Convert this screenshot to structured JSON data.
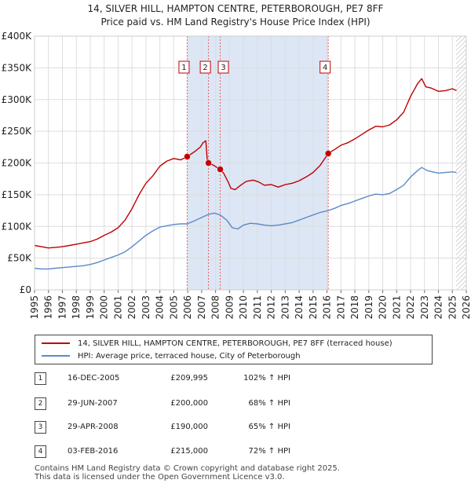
{
  "title_line1": "14, SILVER HILL, HAMPTON CENTRE, PETERBOROUGH, PE7 8FF",
  "title_line2": "Price paid vs. HM Land Registry's House Price Index (HPI)",
  "colors": {
    "property": "#c00000",
    "hpi": "#5b8ac6",
    "shade": "#dde6f5",
    "marker_line": "#e06666",
    "hatch": "#999999"
  },
  "chart_data": {
    "type": "line",
    "title": "Price paid vs. HM Land Registry's House Price Index (HPI)",
    "xlabel": "",
    "ylabel": "",
    "xlim": [
      1995,
      2026
    ],
    "ylim": [
      0,
      400000
    ],
    "y_ticks": [
      {
        "value": 0,
        "label": "£0"
      },
      {
        "value": 50000,
        "label": "£50K"
      },
      {
        "value": 100000,
        "label": "£100K"
      },
      {
        "value": 150000,
        "label": "£150K"
      },
      {
        "value": 200000,
        "label": "£200K"
      },
      {
        "value": 250000,
        "label": "£250K"
      },
      {
        "value": 300000,
        "label": "£300K"
      },
      {
        "value": 350000,
        "label": "£350K"
      },
      {
        "value": 400000,
        "label": "£400K"
      }
    ],
    "x_ticks": [
      "1995",
      "1996",
      "1997",
      "1998",
      "1999",
      "2000",
      "2001",
      "2002",
      "2003",
      "2004",
      "2005",
      "2006",
      "2007",
      "2008",
      "2009",
      "2010",
      "2011",
      "2012",
      "2013",
      "2014",
      "2015",
      "2016",
      "2017",
      "2018",
      "2019",
      "2020",
      "2021",
      "2022",
      "2023",
      "2024",
      "2025",
      "2026"
    ],
    "shaded_range": [
      2005.96,
      2016.09
    ],
    "hatched_from": 2025.25,
    "series": [
      {
        "name": "14, SILVER HILL, HAMPTON CENTRE, PETERBOROUGH, PE7 8FF (terraced house)",
        "color": "#c00000",
        "points": [
          [
            1995,
            70000
          ],
          [
            1995.5,
            68000
          ],
          [
            1996,
            66000
          ],
          [
            1996.5,
            67000
          ],
          [
            1997,
            68000
          ],
          [
            1997.5,
            70000
          ],
          [
            1998,
            72000
          ],
          [
            1998.5,
            74000
          ],
          [
            1999,
            76000
          ],
          [
            1999.5,
            80000
          ],
          [
            2000,
            86000
          ],
          [
            2000.5,
            91000
          ],
          [
            2001,
            98000
          ],
          [
            2001.5,
            110000
          ],
          [
            2002,
            128000
          ],
          [
            2002.5,
            150000
          ],
          [
            2003,
            168000
          ],
          [
            2003.5,
            180000
          ],
          [
            2004,
            195000
          ],
          [
            2004.5,
            203000
          ],
          [
            2005,
            207000
          ],
          [
            2005.5,
            205000
          ],
          [
            2005.96,
            209995
          ],
          [
            2006.5,
            218000
          ],
          [
            2006.9,
            225000
          ],
          [
            2007.1,
            232000
          ],
          [
            2007.3,
            235000
          ],
          [
            2007.4,
            205000
          ],
          [
            2007.49,
            200000
          ],
          [
            2007.8,
            197000
          ],
          [
            2008.1,
            193000
          ],
          [
            2008.33,
            190000
          ],
          [
            2008.6,
            183000
          ],
          [
            2008.9,
            170000
          ],
          [
            2009.1,
            160000
          ],
          [
            2009.4,
            158000
          ],
          [
            2009.8,
            165000
          ],
          [
            2010.2,
            171000
          ],
          [
            2010.7,
            173000
          ],
          [
            2011.1,
            170000
          ],
          [
            2011.5,
            165000
          ],
          [
            2012,
            166000
          ],
          [
            2012.5,
            162000
          ],
          [
            2013,
            166000
          ],
          [
            2013.5,
            168000
          ],
          [
            2014,
            172000
          ],
          [
            2014.5,
            178000
          ],
          [
            2015,
            185000
          ],
          [
            2015.5,
            196000
          ],
          [
            2016.09,
            215000
          ],
          [
            2016.6,
            222000
          ],
          [
            2017,
            228000
          ],
          [
            2017.5,
            232000
          ],
          [
            2018,
            238000
          ],
          [
            2018.5,
            245000
          ],
          [
            2019,
            252000
          ],
          [
            2019.5,
            258000
          ],
          [
            2020,
            257000
          ],
          [
            2020.5,
            260000
          ],
          [
            2021,
            268000
          ],
          [
            2021.5,
            280000
          ],
          [
            2022,
            305000
          ],
          [
            2022.5,
            325000
          ],
          [
            2022.8,
            333000
          ],
          [
            2023.1,
            320000
          ],
          [
            2023.5,
            318000
          ],
          [
            2024,
            313000
          ],
          [
            2024.5,
            314000
          ],
          [
            2025,
            317000
          ],
          [
            2025.3,
            314000
          ]
        ]
      },
      {
        "name": "HPI: Average price, terraced house, City of Peterborough",
        "color": "#5b8ac6",
        "points": [
          [
            1995,
            34000
          ],
          [
            1995.5,
            33000
          ],
          [
            1996,
            33000
          ],
          [
            1996.5,
            34000
          ],
          [
            1997,
            35000
          ],
          [
            1997.5,
            36000
          ],
          [
            1998,
            37000
          ],
          [
            1998.5,
            38000
          ],
          [
            1999,
            40000
          ],
          [
            1999.5,
            43000
          ],
          [
            2000,
            47000
          ],
          [
            2000.5,
            51000
          ],
          [
            2001,
            55000
          ],
          [
            2001.5,
            60000
          ],
          [
            2002,
            68000
          ],
          [
            2002.5,
            77000
          ],
          [
            2003,
            86000
          ],
          [
            2003.5,
            93000
          ],
          [
            2004,
            99000
          ],
          [
            2004.5,
            101000
          ],
          [
            2005,
            103000
          ],
          [
            2005.5,
            104000
          ],
          [
            2005.96,
            104000
          ],
          [
            2006.5,
            109000
          ],
          [
            2007,
            114000
          ],
          [
            2007.49,
            119000
          ],
          [
            2007.9,
            121000
          ],
          [
            2008.33,
            118000
          ],
          [
            2008.8,
            110000
          ],
          [
            2009.2,
            98000
          ],
          [
            2009.6,
            96000
          ],
          [
            2010,
            102000
          ],
          [
            2010.5,
            105000
          ],
          [
            2011,
            104000
          ],
          [
            2011.5,
            102000
          ],
          [
            2012,
            101000
          ],
          [
            2012.5,
            102000
          ],
          [
            2013,
            104000
          ],
          [
            2013.5,
            106000
          ],
          [
            2014,
            110000
          ],
          [
            2014.5,
            114000
          ],
          [
            2015,
            118000
          ],
          [
            2015.5,
            122000
          ],
          [
            2016.09,
            125000
          ],
          [
            2016.6,
            129000
          ],
          [
            2017,
            133000
          ],
          [
            2017.5,
            136000
          ],
          [
            2018,
            140000
          ],
          [
            2018.5,
            144000
          ],
          [
            2019,
            148000
          ],
          [
            2019.5,
            151000
          ],
          [
            2020,
            150000
          ],
          [
            2020.5,
            152000
          ],
          [
            2021,
            158000
          ],
          [
            2021.5,
            165000
          ],
          [
            2022,
            178000
          ],
          [
            2022.5,
            188000
          ],
          [
            2022.8,
            193000
          ],
          [
            2023.2,
            188000
          ],
          [
            2023.6,
            186000
          ],
          [
            2024,
            184000
          ],
          [
            2024.5,
            185000
          ],
          [
            2025,
            186000
          ],
          [
            2025.3,
            185000
          ]
        ]
      }
    ],
    "markers": [
      {
        "id": "1",
        "x": 2005.96,
        "y": 209995
      },
      {
        "id": "2",
        "x": 2007.49,
        "y": 200000
      },
      {
        "id": "3",
        "x": 2008.33,
        "y": 190000
      },
      {
        "id": "4",
        "x": 2016.09,
        "y": 215000
      }
    ]
  },
  "legend": {
    "property": "14, SILVER HILL, HAMPTON CENTRE, PETERBOROUGH, PE7 8FF (terraced house)",
    "hpi": "HPI: Average price, terraced house, City of Peterborough"
  },
  "sales": [
    {
      "id": "1",
      "date": "16-DEC-2005",
      "price": "£209,995",
      "hpi": "102% ↑ HPI"
    },
    {
      "id": "2",
      "date": "29-JUN-2007",
      "price": "£200,000",
      "hpi": "68% ↑ HPI"
    },
    {
      "id": "3",
      "date": "29-APR-2008",
      "price": "£190,000",
      "hpi": "65% ↑ HPI"
    },
    {
      "id": "4",
      "date": "03-FEB-2016",
      "price": "£215,000",
      "hpi": "72% ↑ HPI"
    }
  ],
  "footer": {
    "line1": "Contains HM Land Registry data © Crown copyright and database right 2025.",
    "line2": "This data is licensed under the Open Government Licence v3.0."
  }
}
